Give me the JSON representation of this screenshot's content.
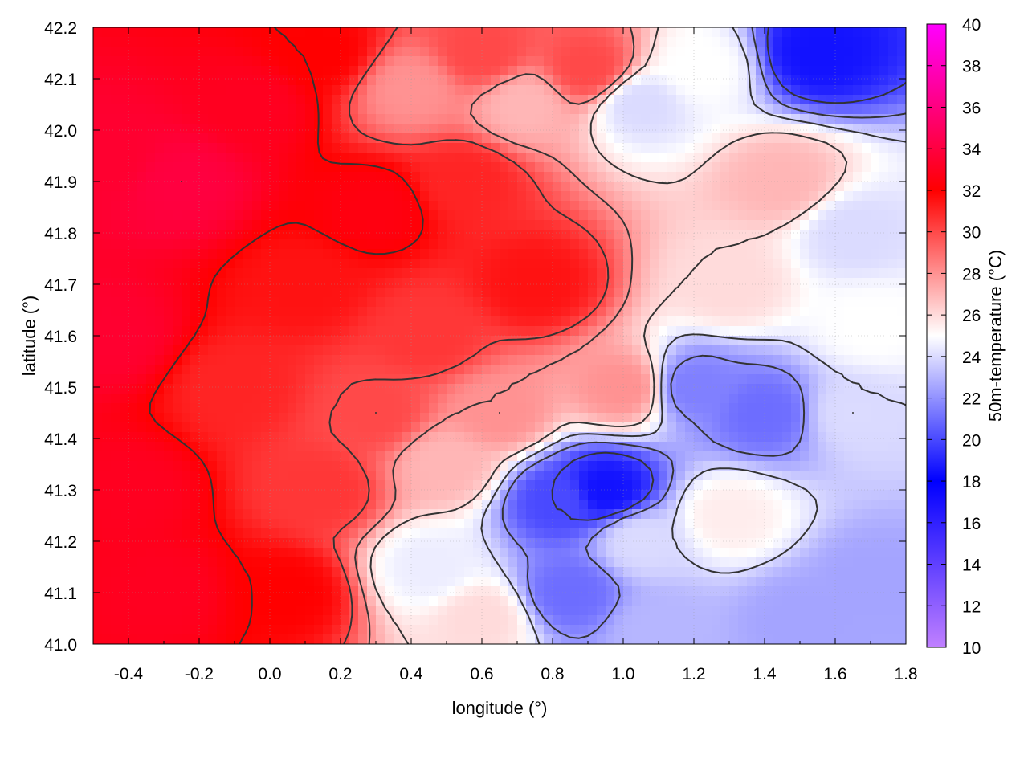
{
  "chart_data": {
    "type": "heatmap",
    "title": "",
    "xlabel": "longitude (°)",
    "ylabel": "latitude (°)",
    "colorbar_label": "50m-temperature (°C)",
    "xlim": [
      -0.5,
      1.8
    ],
    "ylim": [
      41.0,
      42.2
    ],
    "clim": [
      10,
      40
    ],
    "xticks": [
      -0.4,
      -0.2,
      0.0,
      0.2,
      0.4,
      0.6,
      0.8,
      1.0,
      1.2,
      1.4,
      1.6,
      1.8
    ],
    "xtick_labels": [
      "-0.4",
      "-0.2",
      "0.0",
      "0.2",
      "0.4",
      "0.6",
      "0.8",
      "1.0",
      "1.2",
      "1.4",
      "1.6",
      "1.8"
    ],
    "yticks": [
      41.0,
      41.1,
      41.2,
      41.3,
      41.4,
      41.5,
      41.6,
      41.7,
      41.8,
      41.9,
      42.0,
      42.1,
      42.2
    ],
    "ytick_labels": [
      "41.0",
      "41.1",
      "41.2",
      "41.3",
      "41.4",
      "41.5",
      "41.6",
      "41.7",
      "41.8",
      "41.9",
      "42.0",
      "42.1",
      "42.2"
    ],
    "cticks": [
      10,
      12,
      14,
      16,
      18,
      20,
      22,
      24,
      26,
      28,
      30,
      32,
      34,
      36,
      38,
      40
    ],
    "ctick_labels": [
      "10",
      "12",
      "14",
      "16",
      "18",
      "20",
      "22",
      "24",
      "26",
      "28",
      "30",
      "32",
      "34",
      "36",
      "38",
      "40"
    ],
    "colormap": [
      {
        "value": 10,
        "color": "#c080ff"
      },
      {
        "value": 18,
        "color": "#0000ff"
      },
      {
        "value": 25,
        "color": "#ffffff"
      },
      {
        "value": 32,
        "color": "#ff0000"
      },
      {
        "value": 40,
        "color": "#ff00ff"
      }
    ],
    "grid": true,
    "contour_color": "#333333",
    "temperature_samples": [
      {
        "lon": -0.45,
        "lat": 41.95,
        "temp": 33.5
      },
      {
        "lon": -0.25,
        "lat": 41.9,
        "temp": 34
      },
      {
        "lon": -0.05,
        "lat": 42.05,
        "temp": 33
      },
      {
        "lon": 0.15,
        "lat": 42.15,
        "temp": 32
      },
      {
        "lon": 0.3,
        "lat": 41.85,
        "temp": 32.5
      },
      {
        "lon": 0.55,
        "lat": 41.9,
        "temp": 31
      },
      {
        "lon": 0.75,
        "lat": 41.7,
        "temp": 31.5
      },
      {
        "lon": 0.9,
        "lat": 42.12,
        "temp": 30
      },
      {
        "lon": 0.72,
        "lat": 42.05,
        "temp": 27
      },
      {
        "lon": 1.05,
        "lat": 42.05,
        "temp": 24
      },
      {
        "lon": 1.22,
        "lat": 42.12,
        "temp": 25
      },
      {
        "lon": 1.55,
        "lat": 42.15,
        "temp": 18.5
      },
      {
        "lon": 1.45,
        "lat": 41.9,
        "temp": 27
      },
      {
        "lon": 1.65,
        "lat": 41.8,
        "temp": 24
      },
      {
        "lon": 1.3,
        "lat": 41.7,
        "temp": 26
      },
      {
        "lon": 1.0,
        "lat": 41.5,
        "temp": 28
      },
      {
        "lon": 1.2,
        "lat": 41.5,
        "temp": 21.5
      },
      {
        "lon": 1.4,
        "lat": 41.45,
        "temp": 21
      },
      {
        "lon": 1.65,
        "lat": 41.45,
        "temp": 24
      },
      {
        "lon": 1.7,
        "lat": 41.62,
        "temp": 25
      },
      {
        "lon": 0.95,
        "lat": 41.3,
        "temp": 18.5
      },
      {
        "lon": 0.82,
        "lat": 41.28,
        "temp": 20
      },
      {
        "lon": 0.85,
        "lat": 41.1,
        "temp": 21
      },
      {
        "lon": 1.05,
        "lat": 41.2,
        "temp": 24
      },
      {
        "lon": 1.3,
        "lat": 41.25,
        "temp": 25.5
      },
      {
        "lon": 1.5,
        "lat": 41.05,
        "temp": 22.5
      },
      {
        "lon": 1.7,
        "lat": 41.12,
        "temp": 22.5
      },
      {
        "lon": 1.1,
        "lat": 41.03,
        "temp": 23
      },
      {
        "lon": 0.6,
        "lat": 41.05,
        "temp": 26
      },
      {
        "lon": 0.45,
        "lat": 41.15,
        "temp": 24.5
      },
      {
        "lon": 0.5,
        "lat": 41.35,
        "temp": 27
      },
      {
        "lon": 0.3,
        "lat": 41.45,
        "temp": 30
      },
      {
        "lon": 0.15,
        "lat": 41.3,
        "temp": 30.5
      },
      {
        "lon": -0.1,
        "lat": 41.5,
        "temp": 31
      },
      {
        "lon": -0.4,
        "lat": 41.3,
        "temp": 33
      },
      {
        "lon": -0.3,
        "lat": 41.1,
        "temp": 33
      },
      {
        "lon": 0.05,
        "lat": 41.1,
        "temp": 32
      },
      {
        "lon": -0.45,
        "lat": 41.6,
        "temp": 33.5
      },
      {
        "lon": 0.1,
        "lat": 41.7,
        "temp": 31.5
      },
      {
        "lon": 0.45,
        "lat": 41.6,
        "temp": 30.5
      },
      {
        "lon": 0.65,
        "lat": 41.45,
        "temp": 28
      },
      {
        "lon": 0.4,
        "lat": 42.08,
        "temp": 28
      },
      {
        "lon": 0.6,
        "lat": 42.15,
        "temp": 30
      }
    ]
  }
}
